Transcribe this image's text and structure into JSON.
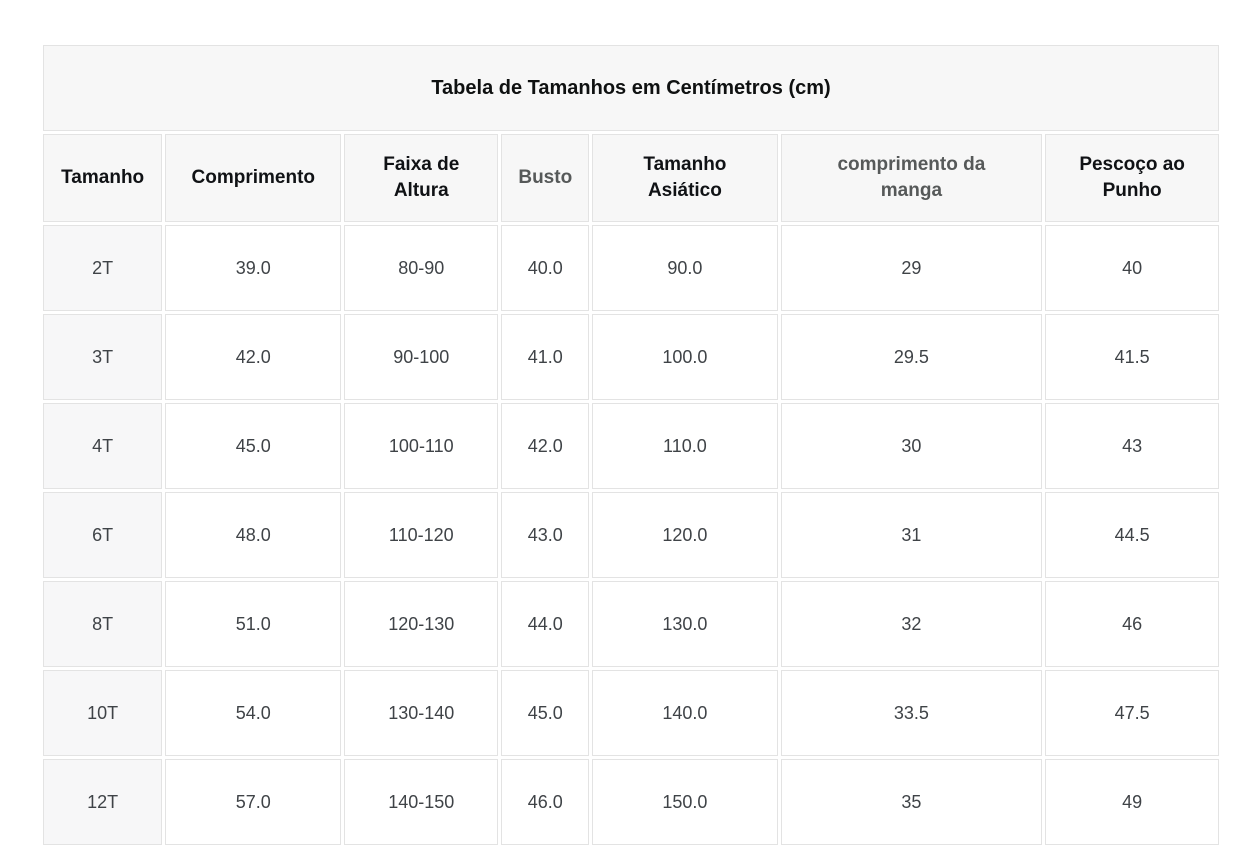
{
  "chart_data": {
    "type": "table",
    "title": "Tabela de Tamanhos em Centímetros (cm)",
    "columns": [
      "Tamanho",
      "Comprimento",
      "Faixa de Altura",
      "Busto",
      "Tamanho Asiático",
      "comprimento da manga",
      "Pescoço ao Punho"
    ],
    "column_emphasis": [
      "dark",
      "dark",
      "dark",
      "gray",
      "dark",
      "gray",
      "dark"
    ],
    "rows": [
      [
        "2T",
        "39.0",
        "80-90",
        "40.0",
        "90.0",
        "29",
        "40"
      ],
      [
        "3T",
        "42.0",
        "90-100",
        "41.0",
        "100.0",
        "29.5",
        "41.5"
      ],
      [
        "4T",
        "45.0",
        "100-110",
        "42.0",
        "110.0",
        "30",
        "43"
      ],
      [
        "6T",
        "48.0",
        "110-120",
        "43.0",
        "120.0",
        "31",
        "44.5"
      ],
      [
        "8T",
        "51.0",
        "120-130",
        "44.0",
        "130.0",
        "32",
        "46"
      ],
      [
        "10T",
        "54.0",
        "130-140",
        "45.0",
        "140.0",
        "33.5",
        "47.5"
      ],
      [
        "12T",
        "57.0",
        "140-150",
        "46.0",
        "150.0",
        "35",
        "49"
      ]
    ],
    "layout": {
      "column_width_percent": [
        10.3,
        15.2,
        13.3,
        7.6,
        16.0,
        22.6,
        15.0
      ],
      "grid": "on"
    }
  },
  "colors": {
    "header_bg": "#f7f7f7",
    "cell_bg": "#ffffff",
    "grid_line": "#e3e3e3",
    "title_text": "#0f1111",
    "header_text_dark": "#101215",
    "header_text_gray": "#565959",
    "data_text": "#3f4347"
  }
}
